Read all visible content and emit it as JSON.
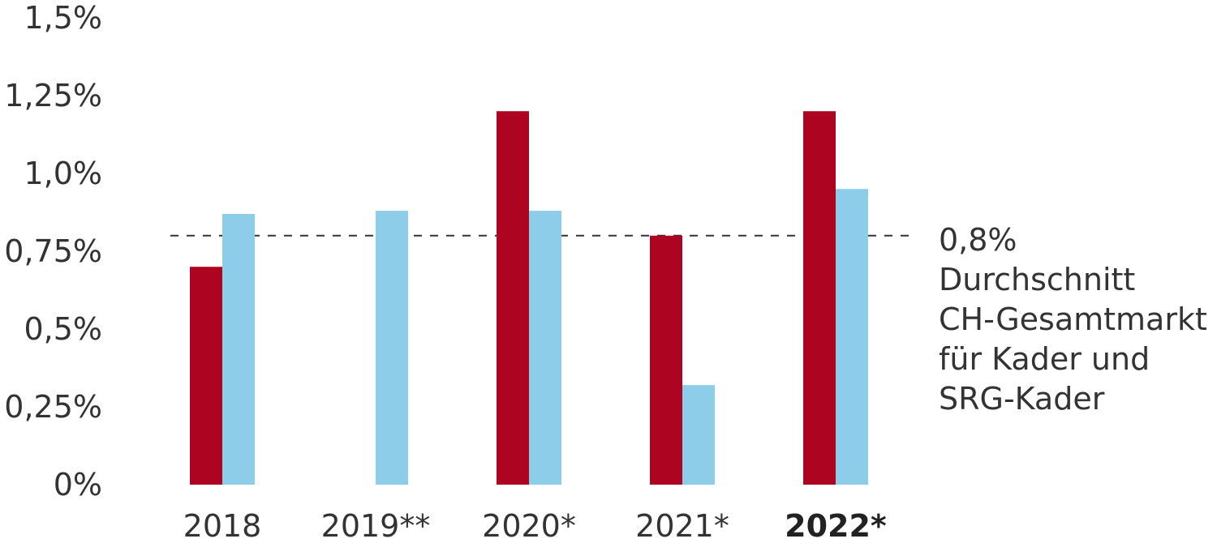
{
  "chart_data": {
    "type": "bar",
    "categories": [
      "2018",
      "2019**",
      "2020*",
      "2021*",
      "2022*"
    ],
    "bold_categories": [
      "2022*"
    ],
    "series": [
      {
        "values": [
          0.7,
          null,
          1.2,
          0.8,
          1.2
        ],
        "color": "#ad0521"
      },
      {
        "values": [
          0.87,
          0.88,
          0.88,
          0.32,
          0.95
        ],
        "color": "#8ecde9"
      }
    ],
    "ylim": [
      0,
      1.5
    ],
    "yticks": [
      {
        "value": 0,
        "label": "0%"
      },
      {
        "value": 0.25,
        "label": "0,25%"
      },
      {
        "value": 0.5,
        "label": "0,5%"
      },
      {
        "value": 0.75,
        "label": "0,75%"
      },
      {
        "value": 1.0,
        "label": "1,0%"
      },
      {
        "value": 1.25,
        "label": "1,25%"
      },
      {
        "value": 1.5,
        "label": "1,5%"
      }
    ],
    "reference_line": {
      "value": 0.8,
      "style": "dashed",
      "label_lines": [
        "0,8%",
        "Durchschnitt",
        "CH-Gesamtmarkt",
        "für Kader und",
        "SRG-Kader"
      ]
    },
    "grid": false,
    "legend": "none"
  }
}
